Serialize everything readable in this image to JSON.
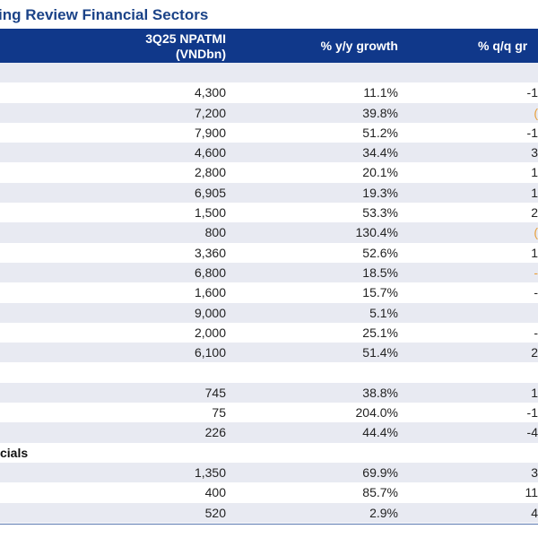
{
  "title": "ing Review Financial Sectors",
  "header": {
    "col1_line1": "3Q25 NPATMI",
    "col1_line2": "(VNDbn)",
    "col2": "% y/y growth",
    "col3": "% q/q gr"
  },
  "rows": [
    {
      "type": "section",
      "label": "",
      "shade": true
    },
    {
      "npatmi": "4,300",
      "yy": "11.1%",
      "qq": "-1",
      "qq_color": "dark",
      "shade": false
    },
    {
      "npatmi": "7,200",
      "yy": "39.8%",
      "qq": "(",
      "qq_color": "orange",
      "shade": true
    },
    {
      "npatmi": "7,900",
      "yy": "51.2%",
      "qq": "-1",
      "qq_color": "dark",
      "shade": false
    },
    {
      "npatmi": "4,600",
      "yy": "34.4%",
      "qq": "3",
      "qq_color": "dark",
      "shade": true
    },
    {
      "npatmi": "2,800",
      "yy": "20.1%",
      "qq": "1",
      "qq_color": "dark",
      "shade": false
    },
    {
      "npatmi": "6,905",
      "yy": "19.3%",
      "qq": "1",
      "qq_color": "dark",
      "shade": true
    },
    {
      "npatmi": "1,500",
      "yy": "53.3%",
      "qq": "2",
      "qq_color": "dark",
      "shade": false
    },
    {
      "npatmi": "800",
      "yy": "130.4%",
      "qq": "(",
      "qq_color": "orange",
      "shade": true
    },
    {
      "npatmi": "3,360",
      "yy": "52.6%",
      "qq": "1",
      "qq_color": "dark",
      "shade": false
    },
    {
      "npatmi": "6,800",
      "yy": "18.5%",
      "qq": "-",
      "qq_color": "orange",
      "shade": true
    },
    {
      "npatmi": "1,600",
      "yy": "15.7%",
      "qq": "-",
      "qq_color": "dark",
      "shade": false
    },
    {
      "npatmi": "9,000",
      "yy": "5.1%",
      "qq": "",
      "qq_color": "dark",
      "shade": true
    },
    {
      "npatmi": "2,000",
      "yy": "25.1%",
      "qq": "-",
      "qq_color": "dark",
      "shade": false
    },
    {
      "npatmi": "6,100",
      "yy": "51.4%",
      "qq": "2",
      "qq_color": "dark",
      "shade": true
    },
    {
      "type": "section",
      "label": "",
      "shade": false
    },
    {
      "npatmi": "745",
      "yy": "38.8%",
      "qq": "1",
      "qq_color": "dark",
      "shade": true
    },
    {
      "npatmi": "75",
      "yy": "204.0%",
      "qq": "-1",
      "qq_color": "dark",
      "shade": false
    },
    {
      "npatmi": "226",
      "yy": "44.4%",
      "qq": "-4",
      "qq_color": "dark",
      "shade": true
    },
    {
      "type": "section",
      "label": "cials",
      "shade": false
    },
    {
      "npatmi": "1,350",
      "yy": "69.9%",
      "qq": "3",
      "qq_color": "dark",
      "shade": true
    },
    {
      "npatmi": "400",
      "yy": "85.7%",
      "qq": "11",
      "qq_color": "dark",
      "shade": false
    },
    {
      "npatmi": "520",
      "yy": "2.9%",
      "qq": "4",
      "qq_color": "dark",
      "shade": true
    }
  ]
}
